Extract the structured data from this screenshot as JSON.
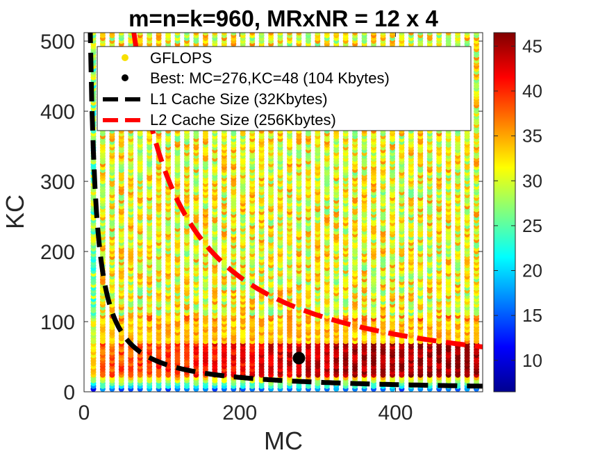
{
  "chart_data": {
    "type": "scatter",
    "title": "m=n=k=960, MRxNR = 12 x 4",
    "xlabel": "MC",
    "ylabel": "KC",
    "xlim": [
      0,
      512
    ],
    "ylim": [
      0,
      512
    ],
    "xticks": [
      0,
      200,
      400
    ],
    "yticks": [
      0,
      100,
      200,
      300,
      400,
      500
    ],
    "grid": false,
    "legend_position": "top",
    "legend": [
      {
        "key": "gflops",
        "label": "GFLOPS",
        "marker": "dot",
        "color": "#f7e000"
      },
      {
        "key": "best",
        "label": "Best: MC=276,KC=48 (104 Kbytes)",
        "marker": "dot",
        "color": "#000000"
      },
      {
        "key": "l1",
        "label": "L1 Cache Size  (32Kbytes)",
        "marker": "dashed-line",
        "color": "#000000"
      },
      {
        "key": "l2",
        "label": "L2 Cache Size (256Kbytes)",
        "marker": "dashed-line",
        "color": "#ff0000"
      }
    ],
    "colorbar": {
      "colormap": "jet",
      "range": [
        6.5,
        46.5
      ],
      "ticks": [
        10,
        15,
        20,
        25,
        30,
        35,
        40,
        45
      ]
    },
    "best_point": {
      "mc": 276,
      "kc": 48
    },
    "mc_values": [
      12,
      24,
      36,
      48,
      60,
      72,
      84,
      96,
      108,
      120,
      132,
      144,
      156,
      168,
      180,
      192,
      204,
      216,
      228,
      240,
      252,
      264,
      276,
      288,
      300,
      312,
      324,
      336,
      348,
      360,
      372,
      384,
      396,
      408,
      420,
      432,
      444,
      456,
      468,
      480,
      492,
      504
    ],
    "kc_step": 4,
    "kc_max": 512,
    "gflops_model": "approx. 43-46 in band KC 24-70 for MC >= 200; 30-38 in upper region; 15-22 near KC < 10",
    "l1_curve": {
      "bytes": 32768,
      "equation": "MC*KC*8 = 32768"
    },
    "l2_curve": {
      "bytes": 262144,
      "equation": "MC*KC*8 = 262144"
    }
  }
}
